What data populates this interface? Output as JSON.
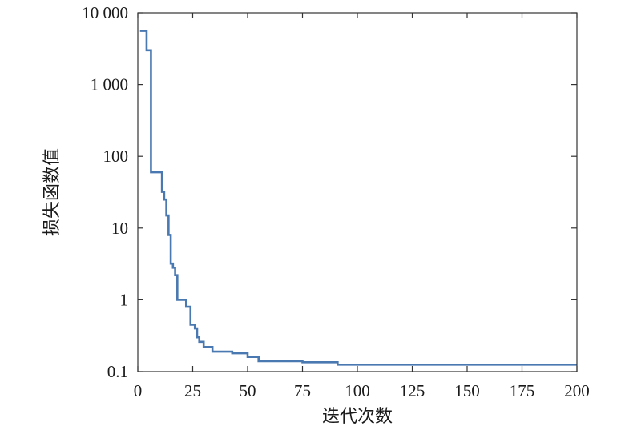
{
  "chart_data": {
    "type": "line",
    "title": "",
    "xlabel": "迭代次数",
    "ylabel": "损失函数值",
    "xlim": [
      0,
      200
    ],
    "ylim": [
      0.1,
      10000
    ],
    "yscale": "log",
    "grid": false,
    "x_ticks": [
      0,
      25,
      50,
      75,
      100,
      125,
      150,
      175,
      200
    ],
    "x_tick_labels": [
      "0",
      "25",
      "50",
      "75",
      "100",
      "125",
      "150",
      "175",
      "200"
    ],
    "y_ticks": [
      0.1,
      1,
      10,
      100,
      1000,
      10000
    ],
    "y_tick_labels": [
      "0.1",
      "1",
      "10",
      "100",
      "1 000",
      "10 000"
    ],
    "line_color": "#4a78b0",
    "series": [
      {
        "step": true,
        "x": [
          1,
          3,
          4,
          5,
          6,
          7,
          8,
          9,
          10,
          11,
          12,
          13,
          14,
          15,
          16,
          17,
          18,
          19,
          20,
          21,
          22,
          23,
          24,
          25,
          26,
          27,
          28,
          29,
          30,
          31,
          32,
          33,
          34,
          35,
          40,
          43,
          46,
          50,
          55,
          60,
          65,
          70,
          75,
          80,
          85,
          91,
          92,
          100,
          150,
          200
        ],
        "y": [
          5600,
          5600,
          3000,
          3000,
          60,
          60,
          60,
          60,
          60,
          32,
          25,
          15,
          8,
          3.2,
          2.8,
          2.2,
          1,
          1,
          1,
          1,
          0.8,
          0.8,
          0.45,
          0.45,
          0.4,
          0.3,
          0.26,
          0.26,
          0.22,
          0.22,
          0.22,
          0.22,
          0.19,
          0.19,
          0.19,
          0.18,
          0.18,
          0.16,
          0.14,
          0.14,
          0.14,
          0.14,
          0.135,
          0.135,
          0.135,
          0.125,
          0.125,
          0.125,
          0.125,
          0.125
        ]
      }
    ]
  }
}
